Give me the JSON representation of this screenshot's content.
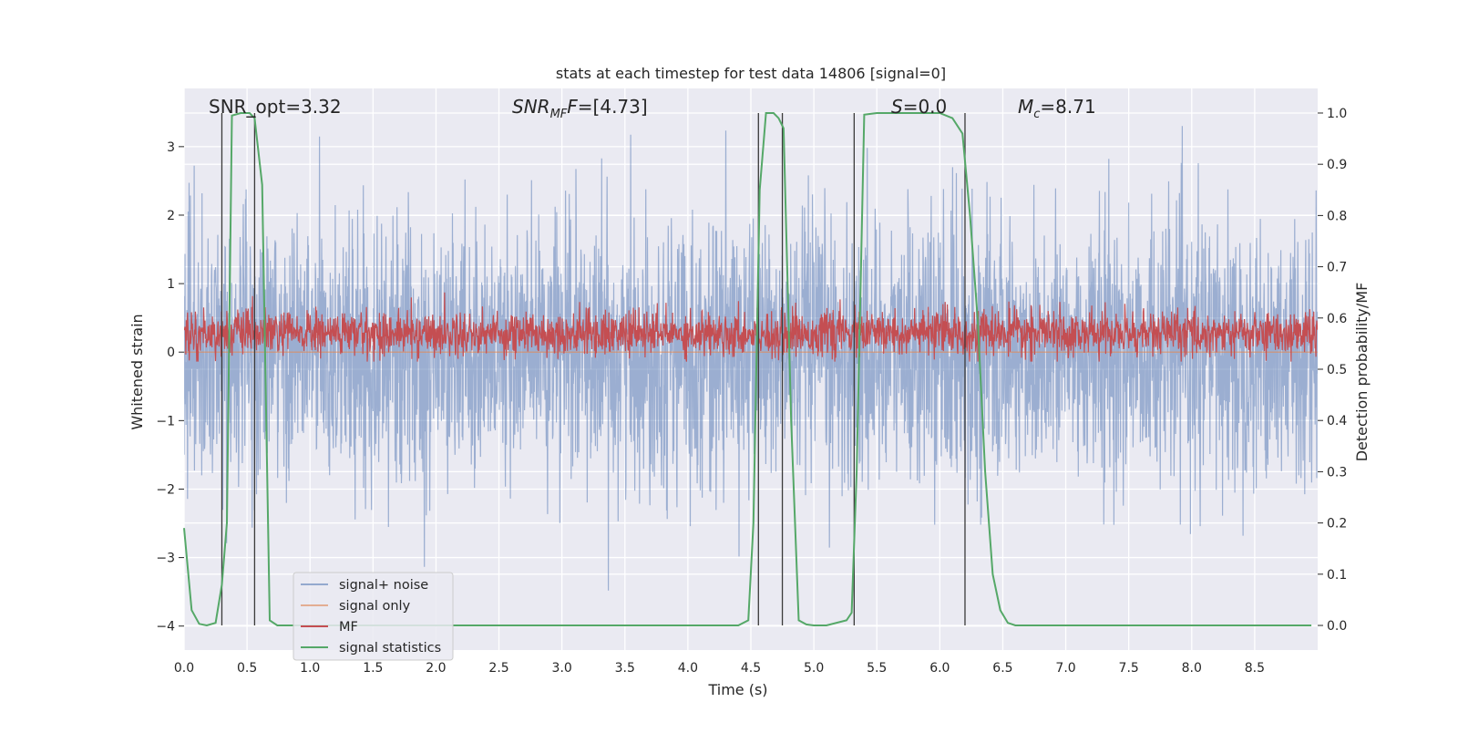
{
  "chart_data": {
    "type": "line",
    "title": "stats at each timestep for test data 14806 [signal=0]",
    "xlabel": "Time (s)",
    "ylabel": "Whitened strain",
    "y2label": "Detection probability/MF",
    "xlim": [
      0,
      9.0
    ],
    "ylim": [
      -4.35,
      3.85
    ],
    "y2lim": [
      -0.048,
      1.048
    ],
    "grid": true,
    "legend_position": "lower-left",
    "x_ticks": [
      "0.0",
      "0.5",
      "1.0",
      "1.5",
      "2.0",
      "2.5",
      "3.0",
      "3.5",
      "4.0",
      "4.5",
      "5.0",
      "5.5",
      "6.0",
      "6.5",
      "7.0",
      "7.5",
      "8.0",
      "8.5"
    ],
    "y_ticks": [
      "−4",
      "−3",
      "−2",
      "−1",
      "0",
      "1",
      "2",
      "3"
    ],
    "y2_ticks": [
      "0.0",
      "0.1",
      "0.2",
      "0.3",
      "0.4",
      "0.5",
      "0.6",
      "0.7",
      "0.8",
      "0.9",
      "1.0"
    ],
    "annotations": {
      "snr_opt": "SNR_opt=3.32",
      "snr_mf_main": "SNR",
      "snr_mf_sub": "MF",
      "snr_mf_rest": "=[4.73]",
      "s_main": "S",
      "s_rest": "=0.0",
      "mc_main": "M",
      "mc_sub": "c",
      "mc_rest": "=8.71"
    },
    "series": [
      {
        "name": "signal+ noise",
        "color": "#4c72b0",
        "band_y": [
          -2.0,
          2.0
        ],
        "peak_abs_max": 3.3
      },
      {
        "name": "signal only",
        "color": "#dd8452",
        "values_y": [
          0.0,
          0.0
        ]
      },
      {
        "name": "MF",
        "color": "#c44e52",
        "band_y2": [
          0.53,
          0.61
        ],
        "spike_y2_max": 0.65
      },
      {
        "name": "signal statistics",
        "color": "#55a868",
        "x": [
          0.0,
          0.06,
          0.12,
          0.18,
          0.25,
          0.3,
          0.34,
          0.38,
          0.45,
          0.52,
          0.56,
          0.62,
          0.68,
          0.74,
          0.82,
          1.2,
          2.0,
          3.0,
          4.0,
          4.4,
          4.48,
          4.52,
          4.57,
          4.62,
          4.68,
          4.72,
          4.76,
          4.82,
          4.88,
          4.94,
          5.0,
          5.1,
          5.26,
          5.3,
          5.34,
          5.4,
          5.5,
          5.7,
          5.9,
          6.0,
          6.1,
          6.18,
          6.24,
          6.3,
          6.36,
          6.42,
          6.48,
          6.54,
          6.6,
          6.7,
          7.0,
          8.0,
          8.95
        ],
        "values": [
          0.19,
          0.03,
          0.003,
          0.0,
          0.005,
          0.08,
          0.2,
          0.995,
          1.0,
          1.0,
          0.99,
          0.86,
          0.01,
          0.0,
          0.0,
          0.0,
          0.0,
          0.0,
          0.0,
          0.0,
          0.01,
          0.2,
          0.85,
          1.0,
          1.0,
          0.99,
          0.97,
          0.4,
          0.01,
          0.002,
          0.0,
          0.0,
          0.01,
          0.025,
          0.3,
          0.997,
          1.0,
          1.0,
          1.0,
          1.0,
          0.99,
          0.96,
          0.8,
          0.6,
          0.3,
          0.1,
          0.03,
          0.005,
          0.0,
          0.0,
          0.0,
          0.0,
          0.0
        ]
      }
    ],
    "vertical_markers": [
      {
        "x": 0.3,
        "top_y2": 1.0
      },
      {
        "x": 0.56,
        "top_y2": 1.0
      },
      {
        "x": 4.56,
        "top_y2": 1.0
      },
      {
        "x": 4.75,
        "top_y2": 1.0
      },
      {
        "x": 5.32,
        "top_y2": 1.0
      },
      {
        "x": 6.2,
        "top_y2": 1.0
      }
    ]
  }
}
